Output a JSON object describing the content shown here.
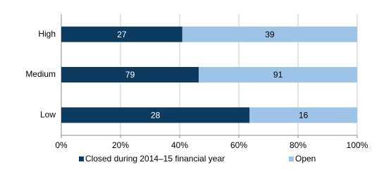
{
  "chart_data": {
    "type": "bar",
    "orientation": "horizontal",
    "stacked": "percent",
    "categories": [
      "High",
      "Medium",
      "Low"
    ],
    "series": [
      {
        "name": "Closed during 2014–15 financial year",
        "color": "#0b3b60",
        "label_color": "#ffffff",
        "values": [
          27,
          79,
          28
        ]
      },
      {
        "name": "Open",
        "color": "#9dc3e6",
        "label_color": "#000000",
        "values": [
          39,
          91,
          16
        ]
      }
    ],
    "xlim": [
      0,
      100
    ],
    "xticks": [
      {
        "value": 0,
        "label": "0%"
      },
      {
        "value": 20,
        "label": "20%"
      },
      {
        "value": 40,
        "label": "40%"
      },
      {
        "value": 60,
        "label": "60%"
      },
      {
        "value": 80,
        "label": "80%"
      },
      {
        "value": 100,
        "label": "100%"
      }
    ],
    "grid": true,
    "legend": "bottom"
  }
}
